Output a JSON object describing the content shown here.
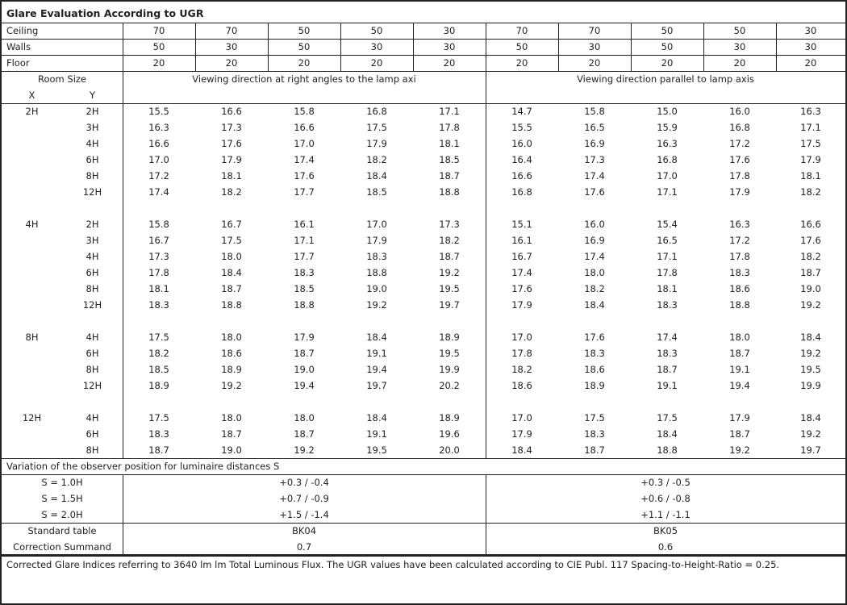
{
  "title": "Glare Evaluation According to UGR",
  "reflectances": [
    {
      "label": "Ceiling",
      "values": [
        "70",
        "70",
        "50",
        "50",
        "30",
        "70",
        "70",
        "50",
        "50",
        "30"
      ]
    },
    {
      "label": "Walls",
      "values": [
        "50",
        "30",
        "50",
        "30",
        "30",
        "50",
        "30",
        "50",
        "30",
        "30"
      ]
    },
    {
      "label": "Floor",
      "values": [
        "20",
        "20",
        "20",
        "20",
        "20",
        "20",
        "20",
        "20",
        "20",
        "20"
      ]
    }
  ],
  "header": {
    "room_size": "Room Size",
    "x": "X",
    "y": "Y",
    "perpendicular": "Viewing direction at right angles to the lamp axi",
    "parallel": "Viewing direction parallel to lamp axis"
  },
  "groups": [
    {
      "x": "2H",
      "rows": [
        {
          "y": "2H",
          "v": [
            "15.5",
            "16.6",
            "15.8",
            "16.8",
            "17.1",
            "14.7",
            "15.8",
            "15.0",
            "16.0",
            "16.3"
          ]
        },
        {
          "y": "3H",
          "v": [
            "16.3",
            "17.3",
            "16.6",
            "17.5",
            "17.8",
            "15.5",
            "16.5",
            "15.9",
            "16.8",
            "17.1"
          ]
        },
        {
          "y": "4H",
          "v": [
            "16.6",
            "17.6",
            "17.0",
            "17.9",
            "18.1",
            "16.0",
            "16.9",
            "16.3",
            "17.2",
            "17.5"
          ]
        },
        {
          "y": "6H",
          "v": [
            "17.0",
            "17.9",
            "17.4",
            "18.2",
            "18.5",
            "16.4",
            "17.3",
            "16.8",
            "17.6",
            "17.9"
          ]
        },
        {
          "y": "8H",
          "v": [
            "17.2",
            "18.1",
            "17.6",
            "18.4",
            "18.7",
            "16.6",
            "17.4",
            "17.0",
            "17.8",
            "18.1"
          ]
        },
        {
          "y": "12H",
          "v": [
            "17.4",
            "18.2",
            "17.7",
            "18.5",
            "18.8",
            "16.8",
            "17.6",
            "17.1",
            "17.9",
            "18.2"
          ]
        }
      ]
    },
    {
      "x": "4H",
      "rows": [
        {
          "y": "2H",
          "v": [
            "15.8",
            "16.7",
            "16.1",
            "17.0",
            "17.3",
            "15.1",
            "16.0",
            "15.4",
            "16.3",
            "16.6"
          ]
        },
        {
          "y": "3H",
          "v": [
            "16.7",
            "17.5",
            "17.1",
            "17.9",
            "18.2",
            "16.1",
            "16.9",
            "16.5",
            "17.2",
            "17.6"
          ]
        },
        {
          "y": "4H",
          "v": [
            "17.3",
            "18.0",
            "17.7",
            "18.3",
            "18.7",
            "16.7",
            "17.4",
            "17.1",
            "17.8",
            "18.2"
          ]
        },
        {
          "y": "6H",
          "v": [
            "17.8",
            "18.4",
            "18.3",
            "18.8",
            "19.2",
            "17.4",
            "18.0",
            "17.8",
            "18.3",
            "18.7"
          ]
        },
        {
          "y": "8H",
          "v": [
            "18.1",
            "18.7",
            "18.5",
            "19.0",
            "19.5",
            "17.6",
            "18.2",
            "18.1",
            "18.6",
            "19.0"
          ]
        },
        {
          "y": "12H",
          "v": [
            "18.3",
            "18.8",
            "18.8",
            "19.2",
            "19.7",
            "17.9",
            "18.4",
            "18.3",
            "18.8",
            "19.2"
          ]
        }
      ]
    },
    {
      "x": "8H",
      "rows": [
        {
          "y": "4H",
          "v": [
            "17.5",
            "18.0",
            "17.9",
            "18.4",
            "18.9",
            "17.0",
            "17.6",
            "17.4",
            "18.0",
            "18.4"
          ]
        },
        {
          "y": "6H",
          "v": [
            "18.2",
            "18.6",
            "18.7",
            "19.1",
            "19.5",
            "17.8",
            "18.3",
            "18.3",
            "18.7",
            "19.2"
          ]
        },
        {
          "y": "8H",
          "v": [
            "18.5",
            "18.9",
            "19.0",
            "19.4",
            "19.9",
            "18.2",
            "18.6",
            "18.7",
            "19.1",
            "19.5"
          ]
        },
        {
          "y": "12H",
          "v": [
            "18.9",
            "19.2",
            "19.4",
            "19.7",
            "20.2",
            "18.6",
            "18.9",
            "19.1",
            "19.4",
            "19.9"
          ]
        }
      ]
    },
    {
      "x": "12H",
      "rows": [
        {
          "y": "4H",
          "v": [
            "17.5",
            "18.0",
            "18.0",
            "18.4",
            "18.9",
            "17.0",
            "17.5",
            "17.5",
            "17.9",
            "18.4"
          ]
        },
        {
          "y": "6H",
          "v": [
            "18.3",
            "18.7",
            "18.7",
            "19.1",
            "19.6",
            "17.9",
            "18.3",
            "18.4",
            "18.7",
            "19.2"
          ]
        },
        {
          "y": "8H",
          "v": [
            "18.7",
            "19.0",
            "19.2",
            "19.5",
            "20.0",
            "18.4",
            "18.7",
            "18.8",
            "19.2",
            "19.7"
          ]
        }
      ]
    }
  ],
  "variation": {
    "title": "Variation of the observer position for luminaire distances S",
    "rows": [
      {
        "label": "S = 1.0H",
        "perp": "+0.3 / -0.4",
        "par": "+0.3 / -0.5"
      },
      {
        "label": "S = 1.5H",
        "perp": "+0.7 / -0.9",
        "par": "+0.6 / -0.8"
      },
      {
        "label": "S = 2.0H",
        "perp": "+1.5 / -1.4",
        "par": "+1.1 / -1.1"
      }
    ]
  },
  "standard": {
    "label": "Standard table",
    "perp": "BK04",
    "par": "BK05"
  },
  "correction": {
    "label": "Correction Summand",
    "perp": "0.7",
    "par": "0.6"
  },
  "footnote": "Corrected Glare Indices referring to 3640 lm lm Total Luminous Flux. The UGR values have been calculated according to CIE Publ. 117    Spacing-to-Height-Ratio = 0.25."
}
